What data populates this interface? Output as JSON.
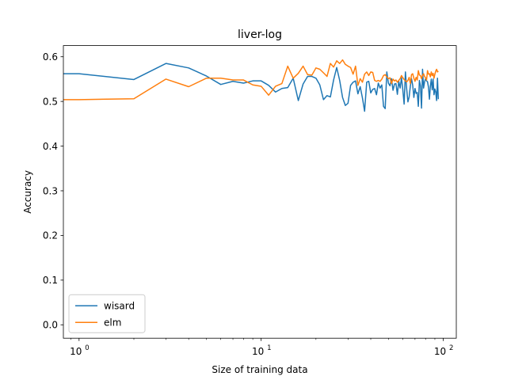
{
  "chart_data": {
    "type": "line",
    "title": "liver-log",
    "xlabel": "Size of training data",
    "ylabel": "Accuracy",
    "xscale": "log",
    "xlim": [
      0.82,
      118
    ],
    "ylim": [
      -0.03,
      0.625
    ],
    "xticks": [
      {
        "value": 1,
        "label": "10",
        "exp": "0"
      },
      {
        "value": 10,
        "label": "10",
        "exp": "1"
      },
      {
        "value": 100,
        "label": "10",
        "exp": "2"
      }
    ],
    "yticks": [
      {
        "value": 0.0,
        "label": "0.0"
      },
      {
        "value": 0.1,
        "label": "0.1"
      },
      {
        "value": 0.2,
        "label": "0.2"
      },
      {
        "value": 0.3,
        "label": "0.3"
      },
      {
        "value": 0.4,
        "label": "0.4"
      },
      {
        "value": 0.5,
        "label": "0.5"
      },
      {
        "value": 0.6,
        "label": "0.6"
      }
    ],
    "legend": "lower-left",
    "grid": false,
    "series": [
      {
        "name": "wisard",
        "color": "#1f77b4",
        "x": [
          0.5,
          1,
          2,
          3,
          4,
          5,
          6,
          7,
          8,
          9,
          10,
          11,
          12,
          13,
          14,
          15,
          16,
          17,
          18,
          19,
          20,
          21,
          22,
          23,
          24,
          25,
          26,
          27,
          28,
          29,
          30,
          31,
          32,
          33,
          34,
          35,
          36,
          37,
          38,
          39,
          40,
          41,
          42,
          43,
          44,
          45,
          46,
          47,
          48,
          49,
          50,
          51,
          52,
          53,
          54,
          55,
          56,
          57,
          58,
          59,
          60,
          61,
          62,
          63,
          64,
          65,
          66,
          67,
          68,
          69,
          70,
          71,
          72,
          73,
          74,
          75,
          76,
          77,
          78,
          79,
          80,
          81,
          82,
          83,
          84,
          85,
          86,
          87,
          88,
          89,
          90,
          91,
          92,
          93,
          94
        ],
        "y": [
          0.562,
          0.562,
          0.549,
          0.585,
          0.575,
          0.557,
          0.538,
          0.545,
          0.541,
          0.546,
          0.546,
          0.536,
          0.521,
          0.529,
          0.531,
          0.552,
          0.502,
          0.539,
          0.556,
          0.556,
          0.552,
          0.537,
          0.504,
          0.513,
          0.51,
          0.548,
          0.576,
          0.547,
          0.509,
          0.491,
          0.496,
          0.536,
          0.543,
          0.546,
          0.517,
          0.533,
          0.508,
          0.478,
          0.543,
          0.545,
          0.519,
          0.527,
          0.529,
          0.515,
          0.541,
          0.53,
          0.537,
          0.489,
          0.484,
          0.566,
          0.541,
          0.535,
          0.551,
          0.525,
          0.539,
          0.54,
          0.516,
          0.545,
          0.53,
          0.553,
          0.526,
          0.494,
          0.566,
          0.528,
          0.499,
          0.51,
          0.535,
          0.551,
          0.536,
          0.509,
          0.529,
          0.518,
          0.52,
          0.489,
          0.547,
          0.535,
          0.485,
          0.572,
          0.53,
          0.544,
          0.551,
          0.546,
          0.544,
          0.532,
          0.505,
          0.534,
          0.55,
          0.526,
          0.55,
          0.515,
          0.528,
          0.521,
          0.502,
          0.552,
          0.505
        ]
      },
      {
        "name": "elm",
        "color": "#ff7f0e",
        "x": [
          0.5,
          1,
          2,
          3,
          4,
          5,
          6,
          7,
          8,
          9,
          10,
          11,
          12,
          13,
          14,
          15,
          16,
          17,
          18,
          19,
          20,
          21,
          22,
          23,
          24,
          25,
          26,
          27,
          28,
          29,
          30,
          31,
          32,
          33,
          34,
          35,
          36,
          37,
          38,
          39,
          40,
          41,
          42,
          43,
          44,
          45,
          46,
          47,
          48,
          49,
          50,
          51,
          52,
          53,
          54,
          55,
          56,
          57,
          58,
          59,
          60,
          61,
          62,
          63,
          64,
          65,
          66,
          67,
          68,
          69,
          70,
          71,
          72,
          73,
          74,
          75,
          76,
          77,
          78,
          79,
          80,
          81,
          82,
          83,
          84,
          85,
          86,
          87,
          88,
          89,
          90,
          91,
          92,
          93,
          94
        ],
        "y": [
          0.504,
          0.504,
          0.506,
          0.55,
          0.533,
          0.552,
          0.552,
          0.548,
          0.548,
          0.537,
          0.534,
          0.514,
          0.534,
          0.54,
          0.579,
          0.552,
          0.563,
          0.579,
          0.56,
          0.559,
          0.575,
          0.572,
          0.564,
          0.556,
          0.585,
          0.577,
          0.591,
          0.585,
          0.593,
          0.583,
          0.579,
          0.576,
          0.561,
          0.579,
          0.536,
          0.551,
          0.543,
          0.561,
          0.566,
          0.558,
          0.566,
          0.565,
          0.547,
          0.545,
          0.547,
          0.545,
          0.55,
          0.558,
          0.56,
          0.555,
          0.551,
          0.553,
          0.54,
          0.55,
          0.546,
          0.548,
          0.543,
          0.547,
          0.551,
          0.558,
          0.553,
          0.549,
          0.546,
          0.544,
          0.547,
          0.554,
          0.54,
          0.56,
          0.562,
          0.552,
          0.545,
          0.554,
          0.548,
          0.569,
          0.559,
          0.558,
          0.551,
          0.558,
          0.562,
          0.556,
          0.553,
          0.548,
          0.569,
          0.561,
          0.562,
          0.555,
          0.566,
          0.558,
          0.563,
          0.552,
          0.561,
          0.568,
          0.572,
          0.566,
          0.568
        ]
      }
    ]
  }
}
